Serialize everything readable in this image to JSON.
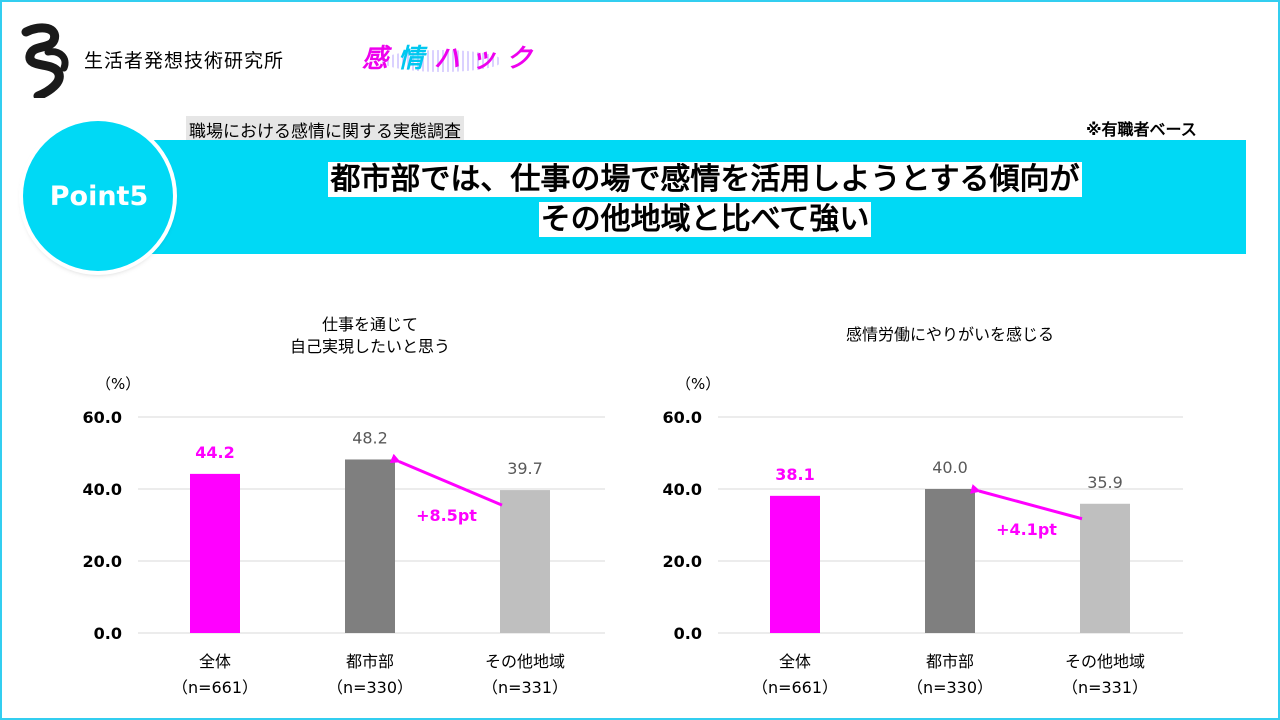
{
  "header": {
    "org_name": "生活者発想技術研究所",
    "brand_name": "感情ハック",
    "brand_char_1": "感",
    "brand_char_2": "情",
    "brand_rest": "ハック",
    "survey_title": "職場における感情に関する実態調査",
    "base_note": "※有職者ベース"
  },
  "banner": {
    "point_label": "Point5",
    "headline_line1": "都市部では、仕事の場で感情を活用しようとする傾向が",
    "headline_line2": "その他地域と比べて強い"
  },
  "colors": {
    "accent_cyan": "#00d9f5",
    "magenta": "#ff00ff",
    "dark_gray": "#7f7f7f",
    "light_gray": "#bfbfbf",
    "arrow": "#ff00ff"
  },
  "chart_data": [
    {
      "type": "bar",
      "title_line1": "仕事を通じて",
      "title_line2": "自己実現したいと思う",
      "unit": "（%）",
      "ylim": [
        0,
        60
      ],
      "yticks": [
        "0.0",
        "20.0",
        "40.0",
        "60.0"
      ],
      "grid": true,
      "categories": [
        "全体",
        "都市部",
        "その他地域"
      ],
      "category_n": [
        "（n=661）",
        "（n=330）",
        "（n=331）"
      ],
      "values": [
        44.2,
        48.2,
        39.7
      ],
      "value_labels": [
        "44.2",
        "48.2",
        "39.7"
      ],
      "bar_colors": [
        "#ff00ff",
        "#7f7f7f",
        "#bfbfbf"
      ],
      "label_colors": [
        "#ff00ff",
        "#595959",
        "#595959"
      ],
      "annotation": "+8.5pt"
    },
    {
      "type": "bar",
      "title_line1": "感情労働にやりがいを感じる",
      "title_line2": "",
      "unit": "（%）",
      "ylim": [
        0,
        60
      ],
      "yticks": [
        "0.0",
        "20.0",
        "40.0",
        "60.0"
      ],
      "grid": true,
      "categories": [
        "全体",
        "都市部",
        "その他地域"
      ],
      "category_n": [
        "（n=661）",
        "（n=330）",
        "（n=331）"
      ],
      "values": [
        38.1,
        40.0,
        35.9
      ],
      "value_labels": [
        "38.1",
        "40.0",
        "35.9"
      ],
      "bar_colors": [
        "#ff00ff",
        "#7f7f7f",
        "#bfbfbf"
      ],
      "label_colors": [
        "#ff00ff",
        "#595959",
        "#595959"
      ],
      "annotation": "+4.1pt"
    }
  ]
}
